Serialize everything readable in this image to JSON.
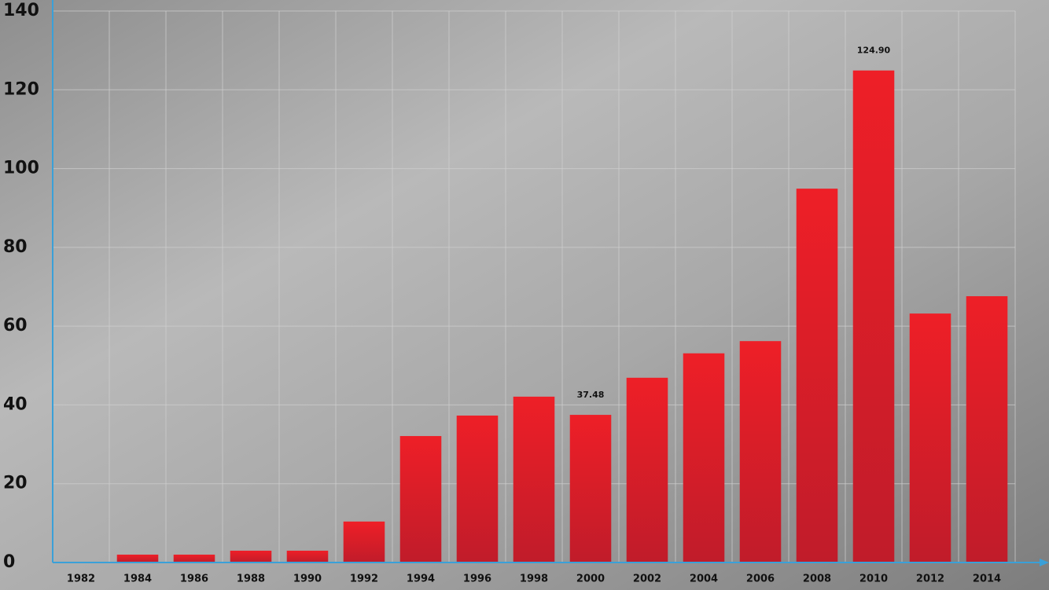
{
  "chart_data": {
    "type": "bar",
    "categories": [
      "1982",
      "1984",
      "1986",
      "1988",
      "1990",
      "1992",
      "1994",
      "1996",
      "1998",
      "2000",
      "2002",
      "2004",
      "2006",
      "2008",
      "2010",
      "2012",
      "2014"
    ],
    "values": [
      0,
      2,
      2,
      3,
      3,
      10.4,
      32.1,
      37.3,
      42.1,
      37.48,
      46.9,
      53.1,
      56.2,
      94.9,
      124.9,
      63.2,
      67.6
    ],
    "value_labels": [
      null,
      null,
      null,
      null,
      null,
      null,
      null,
      null,
      null,
      "37.48",
      null,
      null,
      null,
      null,
      "124.90",
      null,
      null
    ],
    "color": "#e31e25",
    "ylim": [
      0,
      140
    ],
    "yticks": [
      0,
      20,
      40,
      60,
      80,
      100,
      120,
      140
    ],
    "grid": true
  }
}
